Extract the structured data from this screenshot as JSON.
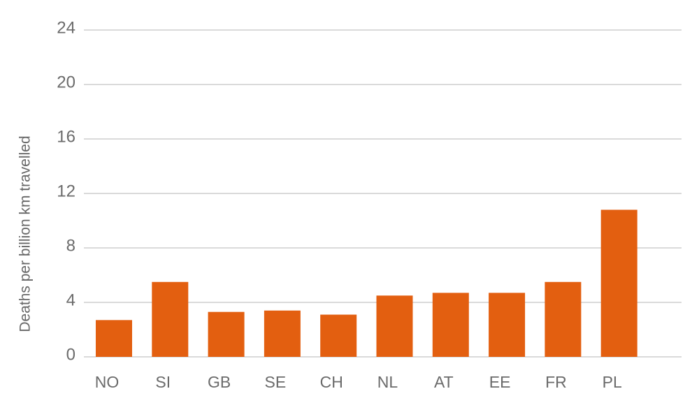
{
  "chart_data": {
    "type": "bar",
    "y_label": "Deaths per billion km travelled",
    "categories": [
      "NO",
      "SI",
      "GB",
      "SE",
      "CH",
      "NL",
      "AT",
      "EE",
      "FR",
      "PL"
    ],
    "values": [
      2.7,
      5.5,
      3.3,
      3.4,
      3.1,
      4.5,
      4.7,
      4.7,
      5.5,
      10.8
    ],
    "color": "#e35f10",
    "ylim": [
      0,
      24
    ],
    "yticks": [
      0,
      4,
      8,
      12,
      16,
      20,
      24
    ],
    "grid": true
  }
}
